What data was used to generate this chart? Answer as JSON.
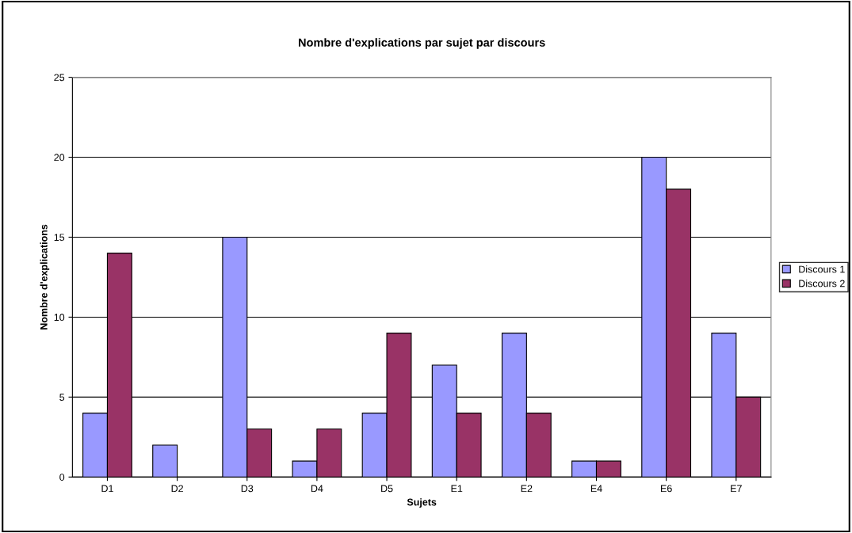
{
  "chart_data": {
    "type": "bar",
    "title": "Nombre d'explications par sujet par discours",
    "xlabel": "Sujets",
    "ylabel": "Nombre d'explications",
    "categories": [
      "D1",
      "D2",
      "D3",
      "D4",
      "D5",
      "E1",
      "E2",
      "E4",
      "E6",
      "E7"
    ],
    "series": [
      {
        "name": "Discours 1",
        "color": "#9999ff",
        "values": [
          4,
          2,
          15,
          1,
          4,
          7,
          9,
          1,
          20,
          9
        ]
      },
      {
        "name": "Discours 2",
        "color": "#993366",
        "values": [
          14,
          0,
          3,
          3,
          9,
          4,
          4,
          1,
          18,
          5
        ]
      }
    ],
    "ylim": [
      0,
      25
    ],
    "yticks": [
      0,
      5,
      10,
      15,
      20,
      25
    ],
    "grid": "y",
    "legend": "right"
  }
}
